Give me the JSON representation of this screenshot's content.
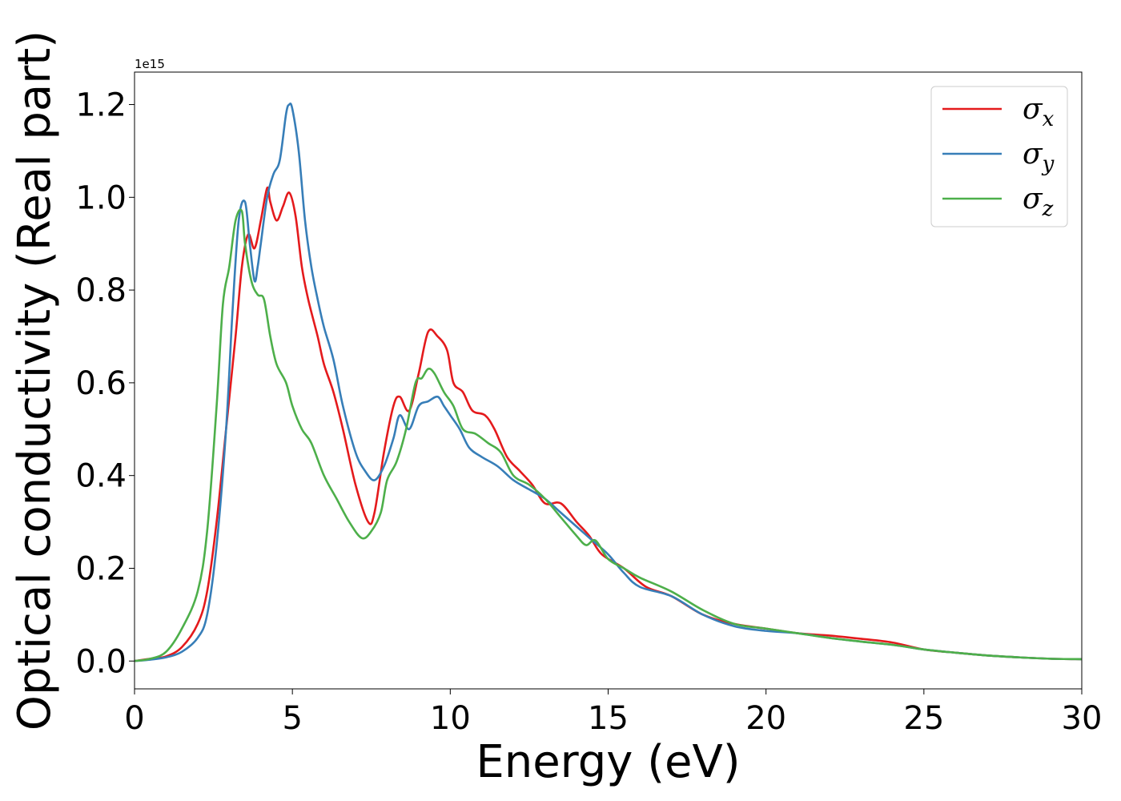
{
  "chart_data": {
    "type": "line",
    "xlabel": "Energy (eV)",
    "ylabel": "Optical conductivity (Real part)",
    "y_offset_label": "1e15",
    "xlim": [
      0,
      30
    ],
    "ylim": [
      -0.06,
      1.27
    ],
    "x_ticks": [
      "0",
      "5",
      "10",
      "15",
      "20",
      "25",
      "30"
    ],
    "y_ticks": [
      "0.0",
      "0.2",
      "0.4",
      "0.6",
      "0.8",
      "1.0",
      "1.2"
    ],
    "grid": false,
    "legend_position": "top-right",
    "series": [
      {
        "name": "σx",
        "symbol": "σ",
        "subscript": "x",
        "color": "#e41a1c",
        "x": [
          0,
          0.5,
          1,
          1.5,
          2,
          2.3,
          2.6,
          2.9,
          3.2,
          3.4,
          3.6,
          3.8,
          4.0,
          4.2,
          4.3,
          4.5,
          4.7,
          4.9,
          5.1,
          5.3,
          5.5,
          5.8,
          6,
          6.3,
          6.6,
          7,
          7.4,
          7.6,
          7.9,
          8.2,
          8.4,
          8.7,
          9,
          9.3,
          9.6,
          9.9,
          10.1,
          10.4,
          10.7,
          11.1,
          11.4,
          11.8,
          12.2,
          12.6,
          13,
          13.5,
          14,
          14.4,
          14.8,
          15.5,
          16.2,
          17,
          18,
          19,
          20,
          21,
          22,
          23,
          24,
          25,
          26,
          27,
          28,
          29,
          30
        ],
        "y": [
          0,
          0.005,
          0.01,
          0.03,
          0.08,
          0.15,
          0.3,
          0.5,
          0.7,
          0.85,
          0.92,
          0.89,
          0.95,
          1.02,
          0.99,
          0.95,
          0.98,
          1.01,
          0.96,
          0.85,
          0.78,
          0.7,
          0.64,
          0.58,
          0.5,
          0.38,
          0.3,
          0.32,
          0.45,
          0.55,
          0.57,
          0.54,
          0.62,
          0.71,
          0.7,
          0.67,
          0.6,
          0.58,
          0.54,
          0.53,
          0.5,
          0.44,
          0.41,
          0.38,
          0.34,
          0.34,
          0.3,
          0.27,
          0.23,
          0.2,
          0.16,
          0.14,
          0.1,
          0.08,
          0.07,
          0.06,
          0.055,
          0.048,
          0.04,
          0.025,
          0.018,
          0.012,
          0.008,
          0.005,
          0.004
        ]
      },
      {
        "name": "σy",
        "symbol": "σ",
        "subscript": "y",
        "color": "#377eb8",
        "x": [
          0,
          0.5,
          1,
          1.5,
          2,
          2.3,
          2.6,
          2.9,
          3.1,
          3.3,
          3.5,
          3.65,
          3.8,
          3.9,
          4.0,
          4.2,
          4.4,
          4.6,
          4.8,
          4.9,
          5.0,
          5.2,
          5.4,
          5.6,
          5.8,
          6,
          6.3,
          6.6,
          7,
          7.3,
          7.6,
          7.9,
          8.2,
          8.4,
          8.7,
          9,
          9.3,
          9.6,
          9.8,
          10,
          10.3,
          10.6,
          11,
          11.5,
          12,
          12.5,
          13,
          13.5,
          14,
          14.5,
          15,
          15.5,
          16,
          17,
          18,
          19,
          20,
          21,
          22,
          23,
          24,
          25,
          26,
          27,
          28,
          29,
          30
        ],
        "y": [
          0,
          0.003,
          0.008,
          0.02,
          0.05,
          0.1,
          0.25,
          0.5,
          0.75,
          0.95,
          0.99,
          0.9,
          0.82,
          0.85,
          0.9,
          1.0,
          1.05,
          1.08,
          1.18,
          1.2,
          1.19,
          1.1,
          0.95,
          0.85,
          0.78,
          0.72,
          0.65,
          0.55,
          0.45,
          0.41,
          0.39,
          0.42,
          0.48,
          0.53,
          0.5,
          0.55,
          0.56,
          0.57,
          0.55,
          0.53,
          0.5,
          0.46,
          0.44,
          0.42,
          0.39,
          0.37,
          0.35,
          0.32,
          0.29,
          0.26,
          0.23,
          0.19,
          0.16,
          0.14,
          0.1,
          0.075,
          0.065,
          0.06,
          0.05,
          0.042,
          0.035,
          0.025,
          0.018,
          0.012,
          0.008,
          0.005,
          0.004
        ]
      },
      {
        "name": "σz",
        "symbol": "σ",
        "subscript": "z",
        "color": "#4daf4a",
        "x": [
          0,
          0.5,
          1,
          1.5,
          2,
          2.3,
          2.6,
          2.8,
          3.0,
          3.2,
          3.4,
          3.5,
          3.7,
          3.9,
          4.1,
          4.3,
          4.5,
          4.8,
          5,
          5.3,
          5.6,
          6,
          6.4,
          6.8,
          7.2,
          7.5,
          7.8,
          8,
          8.3,
          8.6,
          8.9,
          9.1,
          9.3,
          9.5,
          9.8,
          10.1,
          10.4,
          10.8,
          11.2,
          11.6,
          12,
          12.5,
          13,
          13.5,
          14,
          14.3,
          14.6,
          15,
          15.5,
          16,
          17,
          18,
          19,
          20,
          21,
          22,
          23,
          24,
          25,
          26,
          27,
          28,
          29,
          30
        ],
        "y": [
          0,
          0.005,
          0.02,
          0.07,
          0.15,
          0.28,
          0.55,
          0.77,
          0.85,
          0.95,
          0.97,
          0.9,
          0.82,
          0.79,
          0.78,
          0.7,
          0.64,
          0.6,
          0.55,
          0.5,
          0.47,
          0.4,
          0.35,
          0.3,
          0.265,
          0.28,
          0.32,
          0.39,
          0.43,
          0.5,
          0.6,
          0.61,
          0.63,
          0.62,
          0.58,
          0.55,
          0.5,
          0.49,
          0.47,
          0.45,
          0.4,
          0.38,
          0.35,
          0.31,
          0.27,
          0.25,
          0.26,
          0.22,
          0.2,
          0.18,
          0.15,
          0.11,
          0.08,
          0.07,
          0.06,
          0.05,
          0.042,
          0.035,
          0.025,
          0.018,
          0.012,
          0.008,
          0.005,
          0.004
        ]
      }
    ]
  }
}
